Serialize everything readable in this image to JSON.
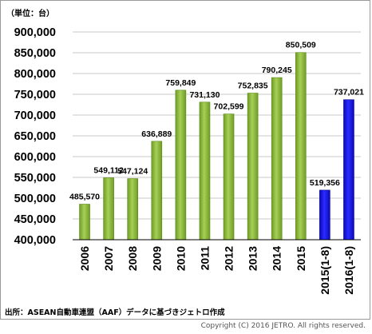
{
  "unit_label": "（単位：台）",
  "source_note": "出所：ASEAN自動車連盟（AAF）データに基づきジェトロ作成",
  "copyright": "Copyright (C) 2016 JETRO. All rights reserved.",
  "colors": {
    "green": "#8dbb3c",
    "green_dark": "#5b8a17",
    "blue": "#1414e6",
    "blue_dark": "#08088c",
    "grid": "#c8c8c8"
  },
  "chart_data": {
    "type": "bar",
    "title": "",
    "xlabel": "",
    "ylabel": "",
    "ylim": [
      400000,
      900000
    ],
    "ytick_step": 50000,
    "ytick_labels": [
      "400,000",
      "450,000",
      "500,000",
      "550,000",
      "600,000",
      "650,000",
      "700,000",
      "750,000",
      "800,000",
      "850,000",
      "900,000"
    ],
    "grid": true,
    "categories": [
      "2006",
      "2007",
      "2008",
      "2009",
      "2010",
      "2011",
      "2012",
      "2013",
      "2014",
      "2015",
      "2015(1-8)",
      "2016(1-8)"
    ],
    "values": [
      485570,
      549112,
      547124,
      636889,
      759849,
      731130,
      702599,
      752835,
      790245,
      850509,
      519356,
      737021
    ],
    "value_labels": [
      "485,570",
      "549,112",
      "547,124",
      "636,889",
      "759,849",
      "731,130",
      "702,599",
      "752,835",
      "790,245",
      "850,509",
      "519,356",
      "737,021"
    ],
    "bar_colors": [
      "green",
      "green",
      "green",
      "green",
      "green",
      "green",
      "green",
      "green",
      "green",
      "green",
      "blue",
      "blue"
    ]
  }
}
